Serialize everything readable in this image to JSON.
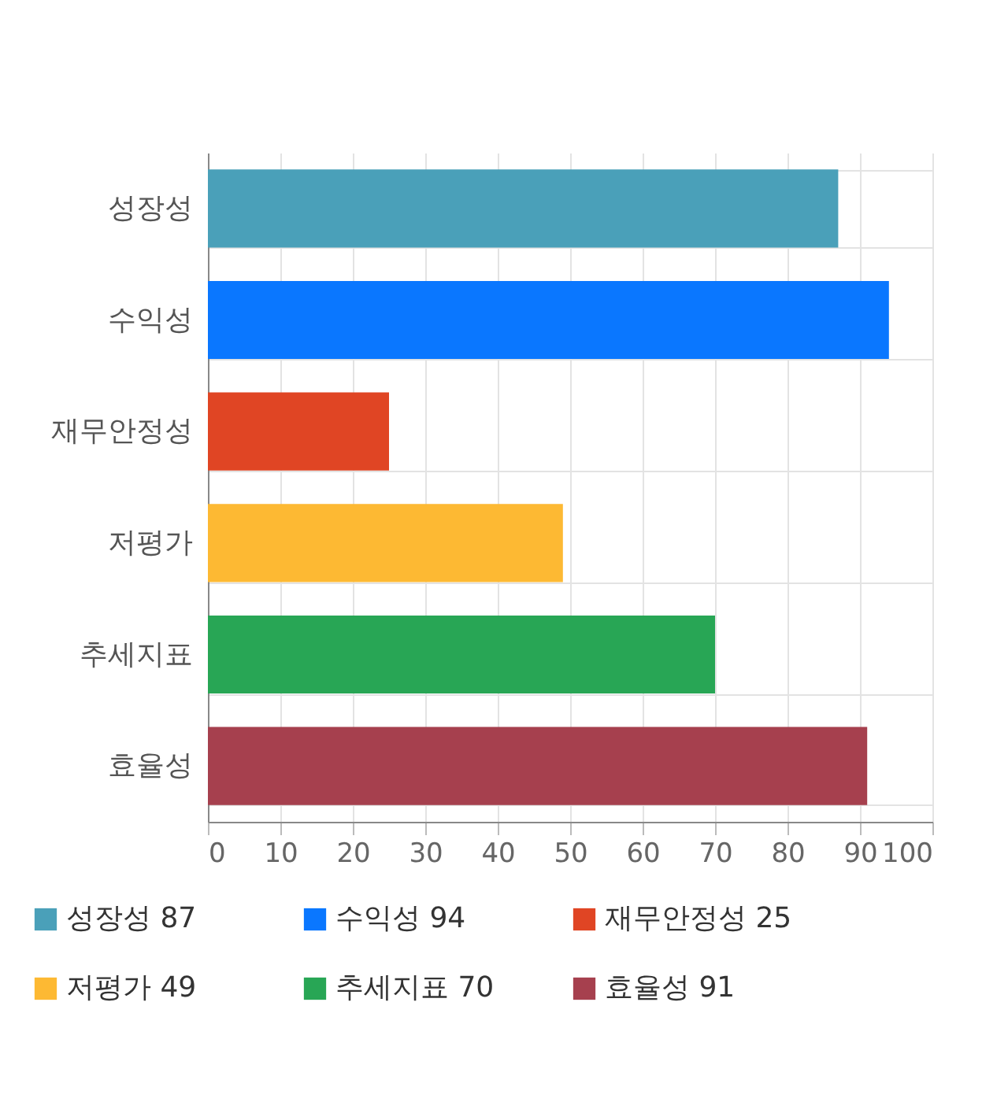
{
  "chart_data": {
    "type": "bar",
    "orientation": "horizontal",
    "categories": [
      "성장성",
      "수익성",
      "재무안정성",
      "저평가",
      "추세지표",
      "효율성"
    ],
    "series": [
      {
        "name": "성장성 87",
        "color": "#4aa0b9",
        "values": [
          87,
          null,
          null,
          null,
          null,
          null
        ]
      },
      {
        "name": "수익성 94",
        "color": "#0a77ff",
        "values": [
          null,
          94,
          null,
          null,
          null,
          null
        ]
      },
      {
        "name": "재무안정성 25",
        "color": "#e04524",
        "values": [
          null,
          null,
          25,
          null,
          null,
          null
        ]
      },
      {
        "name": "저평가 49",
        "color": "#fdb933",
        "values": [
          null,
          null,
          null,
          49,
          null,
          null
        ]
      },
      {
        "name": "추세지표 70",
        "color": "#28a655",
        "values": [
          null,
          null,
          null,
          null,
          70,
          null
        ]
      },
      {
        "name": "효율성 91",
        "color": "#a6404e",
        "values": [
          null,
          null,
          null,
          null,
          null,
          91
        ]
      }
    ],
    "xlim": [
      0,
      100
    ],
    "xticks": [
      0,
      10,
      20,
      30,
      40,
      50,
      60,
      70,
      80,
      90,
      100
    ],
    "grid": true,
    "legend": "bottom"
  }
}
